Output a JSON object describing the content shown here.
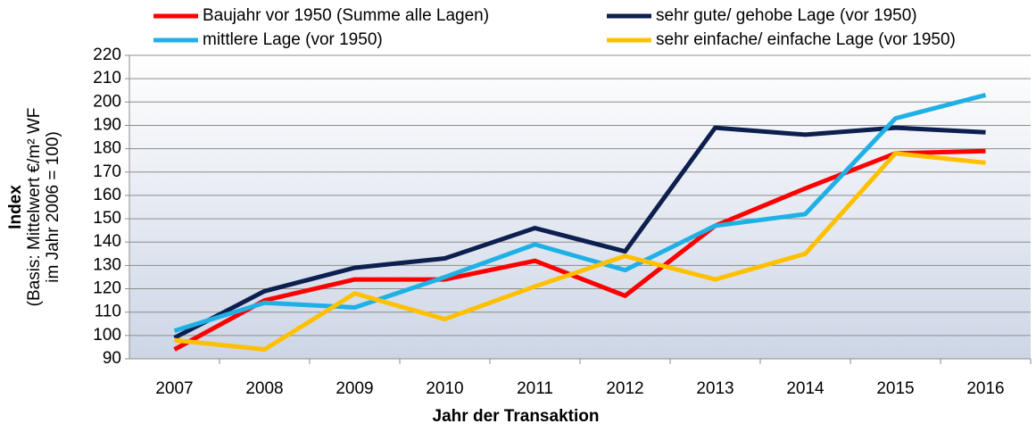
{
  "chart_data": {
    "type": "line",
    "x_label": "Jahr der Transaktion",
    "y_label": [
      "Index",
      "(Basis: Mittelwert €/m² WF",
      "im Jahr  2006 = 100)"
    ],
    "categories": [
      "2007",
      "2008",
      "2009",
      "2010",
      "2011",
      "2012",
      "2013",
      "2014",
      "2015",
      "2016"
    ],
    "series": [
      {
        "name": "Baujahr vor 1950 (Summe alle Lagen)",
        "color": "#ff0000",
        "values": [
          94,
          115,
          124,
          124,
          132,
          117,
          147,
          163,
          178,
          179
        ]
      },
      {
        "name": "sehr gute/ gehobe Lage (vor 1950)",
        "color": "#0d1f4f",
        "values": [
          99,
          119,
          129,
          133,
          146,
          136,
          189,
          186,
          189,
          187
        ]
      },
      {
        "name": "mittlere Lage (vor 1950)",
        "color": "#1fb0e6",
        "values": [
          102,
          114,
          112,
          125,
          139,
          128,
          147,
          152,
          193,
          203
        ]
      },
      {
        "name": "sehr einfache/ einfache Lage (vor 1950)",
        "color": "#ffc000",
        "values": [
          98,
          94,
          118,
          107,
          121,
          134,
          124,
          135,
          178,
          174
        ]
      }
    ],
    "ylim": [
      90,
      220
    ],
    "yticks": [
      90,
      100,
      110,
      120,
      130,
      140,
      150,
      160,
      170,
      180,
      190,
      200,
      210,
      220
    ],
    "grid": true
  }
}
